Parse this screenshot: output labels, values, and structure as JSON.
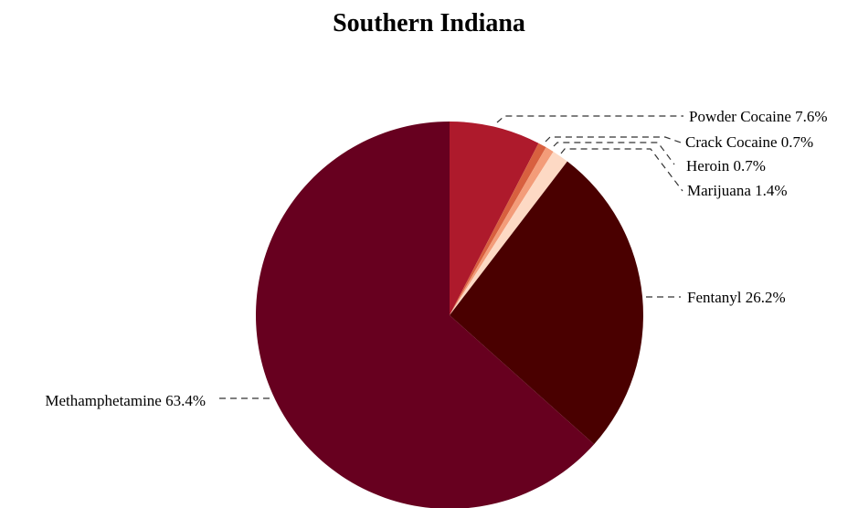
{
  "chart_data": {
    "type": "pie",
    "title": "Southern Indiana",
    "start_angle_deg": 0,
    "direction": "clockwise",
    "slices": [
      {
        "label": "Powder Cocaine",
        "value": 7.6,
        "display": "Powder Cocaine 7.6%",
        "color": "#ae1a2c"
      },
      {
        "label": "Crack Cocaine",
        "value": 0.7,
        "display": "Crack Cocaine 0.7%",
        "color": "#d8603f"
      },
      {
        "label": "Heroin",
        "value": 0.7,
        "display": "Heroin 0.7%",
        "color": "#f39c79"
      },
      {
        "label": "Marijuana",
        "value": 1.4,
        "display": "Marijuana 1.4%",
        "color": "#fdd9c4"
      },
      {
        "label": "Fentanyl",
        "value": 26.2,
        "display": "Fentanyl 26.2%",
        "color": "#4a0000"
      },
      {
        "label": "Methamphetamine",
        "value": 63.4,
        "display": "Methamphetamine 63.4%",
        "color": "#67001f"
      }
    ]
  }
}
